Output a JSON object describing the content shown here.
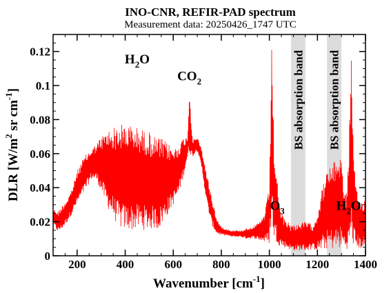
{
  "chart_data": {
    "type": "line",
    "title": "INO-CNR, REFIR-PAD spectrum",
    "subtitle": "Measurement data: 20250426_1747 UTC",
    "xlabel": {
      "base": "Wavenumber [cm",
      "sup": "-1",
      "tail": "]"
    },
    "ylabel": {
      "base": "DLR [W/m",
      "sup1": "2",
      "mid": " sr cm",
      "sup2": "-1",
      "tail": "]"
    },
    "xlim": [
      100,
      1400
    ],
    "ylim": [
      0,
      0.13
    ],
    "x_ticks": [
      200,
      400,
      600,
      800,
      1000,
      1200,
      1400
    ],
    "x_tick_labels": [
      "200",
      "400",
      "600",
      "800",
      "1000",
      "1200",
      "1400"
    ],
    "y_ticks": [
      0,
      0.02,
      0.04,
      0.06,
      0.08,
      0.1,
      0.12
    ],
    "y_tick_labels": [
      "0",
      "0.02",
      "0.04",
      "0.06",
      "0.08",
      "0.1",
      "0.12"
    ],
    "grid": false,
    "series": [
      {
        "color": "#ff0000",
        "x": [
          100,
          120,
          140,
          160,
          180,
          200,
          220,
          240,
          260,
          280,
          300,
          320,
          340,
          360,
          380,
          400,
          420,
          440,
          460,
          480,
          500,
          520,
          540,
          560,
          580,
          600,
          620,
          640,
          660,
          667,
          680,
          700,
          720,
          740,
          760,
          780,
          800,
          820,
          840,
          860,
          880,
          900,
          920,
          940,
          960,
          980,
          1000,
          1010,
          1020,
          1030,
          1040,
          1060,
          1080,
          1090,
          1150,
          1160,
          1180,
          1200,
          1220,
          1240,
          1300,
          1310,
          1320,
          1330,
          1340,
          1350,
          1360,
          1380,
          1400
        ],
        "y_upper": [
          0.028,
          0.026,
          0.03,
          0.034,
          0.04,
          0.05,
          0.056,
          0.06,
          0.063,
          0.066,
          0.07,
          0.073,
          0.075,
          0.076,
          0.077,
          0.078,
          0.077,
          0.076,
          0.075,
          0.074,
          0.073,
          0.07,
          0.07,
          0.068,
          0.066,
          0.063,
          0.065,
          0.069,
          0.07,
          0.1,
          0.068,
          0.07,
          0.062,
          0.048,
          0.035,
          0.022,
          0.017,
          0.016,
          0.015,
          0.015,
          0.015,
          0.016,
          0.017,
          0.018,
          0.02,
          0.025,
          0.04,
          0.125,
          0.06,
          0.05,
          0.03,
          0.022,
          0.02,
          0.018,
          0.02,
          0.02,
          0.018,
          0.025,
          0.04,
          0.05,
          0.06,
          0.04,
          0.035,
          0.058,
          0.125,
          0.06,
          0.04,
          0.032,
          0.035
        ],
        "y_lower": [
          0.018,
          0.014,
          0.016,
          0.02,
          0.025,
          0.03,
          0.035,
          0.04,
          0.045,
          0.044,
          0.038,
          0.03,
          0.025,
          0.02,
          0.016,
          0.015,
          0.015,
          0.015,
          0.016,
          0.015,
          0.015,
          0.016,
          0.015,
          0.02,
          0.025,
          0.03,
          0.035,
          0.045,
          0.058,
          0.06,
          0.058,
          0.062,
          0.05,
          0.03,
          0.018,
          0.013,
          0.012,
          0.012,
          0.011,
          0.011,
          0.011,
          0.01,
          0.01,
          0.01,
          0.009,
          0.008,
          0.007,
          0.02,
          0.01,
          0.008,
          0.006,
          0.005,
          0.004,
          0.003,
          0.003,
          0.003,
          0.004,
          0.003,
          0.003,
          0.004,
          0.004,
          0.005,
          0.004,
          0.004,
          0.005,
          0.006,
          0.005,
          0.004,
          0.004
        ]
      }
    ],
    "bands": [
      {
        "x0": 1090,
        "x1": 1150,
        "label": "BS absorption band",
        "color": "#dcdcdc"
      },
      {
        "x0": 1240,
        "x1": 1300,
        "label": "BS absorption band",
        "color": "#dcdcdc"
      }
    ],
    "annotations": [
      {
        "base": "H",
        "sub": "2",
        "tail": "O",
        "x": 450,
        "y": 0.113
      },
      {
        "base": "CO",
        "sub": "2",
        "tail": "",
        "x": 667,
        "y": 0.103
      },
      {
        "base": "O",
        "sub": "3",
        "tail": "",
        "x": 1033,
        "y": 0.027
      },
      {
        "base": "H",
        "sub": "2",
        "tail": "O",
        "x": 1330,
        "y": 0.027
      }
    ]
  }
}
